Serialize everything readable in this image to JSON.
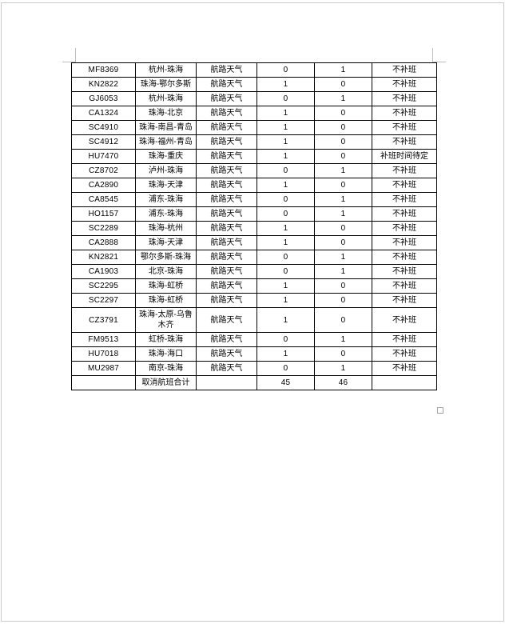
{
  "page": {
    "background": "#ffffff",
    "border_color": "#c9c9c9",
    "margin_mark_color": "#bdbdbd"
  },
  "table": {
    "border_color": "#000000",
    "reason_label": "航路天气",
    "rows": [
      {
        "flight": "MF8369",
        "route": "杭州-珠海",
        "reason": "航路天气",
        "count_a": "0",
        "count_b": "1",
        "status": "不补班"
      },
      {
        "flight": "KN2822",
        "route": "珠海-鄂尔多斯",
        "reason": "航路天气",
        "count_a": "1",
        "count_b": "0",
        "status": "不补班"
      },
      {
        "flight": "GJ6053",
        "route": "杭州-珠海",
        "reason": "航路天气",
        "count_a": "0",
        "count_b": "1",
        "status": "不补班"
      },
      {
        "flight": "CA1324",
        "route": "珠海-北京",
        "reason": "航路天气",
        "count_a": "1",
        "count_b": "0",
        "status": "不补班"
      },
      {
        "flight": "SC4910",
        "route": "珠海-南昌-青岛",
        "reason": "航路天气",
        "count_a": "1",
        "count_b": "0",
        "status": "不补班"
      },
      {
        "flight": "SC4912",
        "route": "珠海-福州-青岛",
        "reason": "航路天气",
        "count_a": "1",
        "count_b": "0",
        "status": "不补班"
      },
      {
        "flight": "HU7470",
        "route": "珠海-重庆",
        "reason": "航路天气",
        "count_a": "1",
        "count_b": "0",
        "status": "补班时间待定"
      },
      {
        "flight": "CZ8702",
        "route": "泸州-珠海",
        "reason": "航路天气",
        "count_a": "0",
        "count_b": "1",
        "status": "不补班"
      },
      {
        "flight": "CA2890",
        "route": "珠海-天津",
        "reason": "航路天气",
        "count_a": "1",
        "count_b": "0",
        "status": "不补班"
      },
      {
        "flight": "CA8545",
        "route": "浦东-珠海",
        "reason": "航路天气",
        "count_a": "0",
        "count_b": "1",
        "status": "不补班"
      },
      {
        "flight": "HO1157",
        "route": "浦东-珠海",
        "reason": "航路天气",
        "count_a": "0",
        "count_b": "1",
        "status": "不补班"
      },
      {
        "flight": "SC2289",
        "route": "珠海-杭州",
        "reason": "航路天气",
        "count_a": "1",
        "count_b": "0",
        "status": "不补班"
      },
      {
        "flight": "CA2888",
        "route": "珠海-天津",
        "reason": "航路天气",
        "count_a": "1",
        "count_b": "0",
        "status": "不补班"
      },
      {
        "flight": "KN2821",
        "route": "鄂尔多斯-珠海",
        "reason": "航路天气",
        "count_a": "0",
        "count_b": "1",
        "status": "不补班"
      },
      {
        "flight": "CA1903",
        "route": "北京-珠海",
        "reason": "航路天气",
        "count_a": "0",
        "count_b": "1",
        "status": "不补班"
      },
      {
        "flight": "SC2295",
        "route": "珠海-虹桥",
        "reason": "航路天气",
        "count_a": "1",
        "count_b": "0",
        "status": "不补班"
      },
      {
        "flight": "SC2297",
        "route": "珠海-虹桥",
        "reason": "航路天气",
        "count_a": "1",
        "count_b": "0",
        "status": "不补班"
      },
      {
        "flight": "CZ3791",
        "route": "珠海-太原-乌鲁木齐",
        "reason": "航路天气",
        "count_a": "1",
        "count_b": "0",
        "status": "不补班"
      },
      {
        "flight": "FM9513",
        "route": "虹桥-珠海",
        "reason": "航路天气",
        "count_a": "0",
        "count_b": "1",
        "status": "不补班"
      },
      {
        "flight": "HU7018",
        "route": "珠海-海口",
        "reason": "航路天气",
        "count_a": "1",
        "count_b": "0",
        "status": "不补班"
      },
      {
        "flight": "MU2987",
        "route": "南京-珠海",
        "reason": "航路天气",
        "count_a": "0",
        "count_b": "1",
        "status": "不补班"
      }
    ],
    "total": {
      "flight": "",
      "route": "取消航班合计",
      "reason": "",
      "count_a": "45",
      "count_b": "46",
      "status": ""
    }
  }
}
